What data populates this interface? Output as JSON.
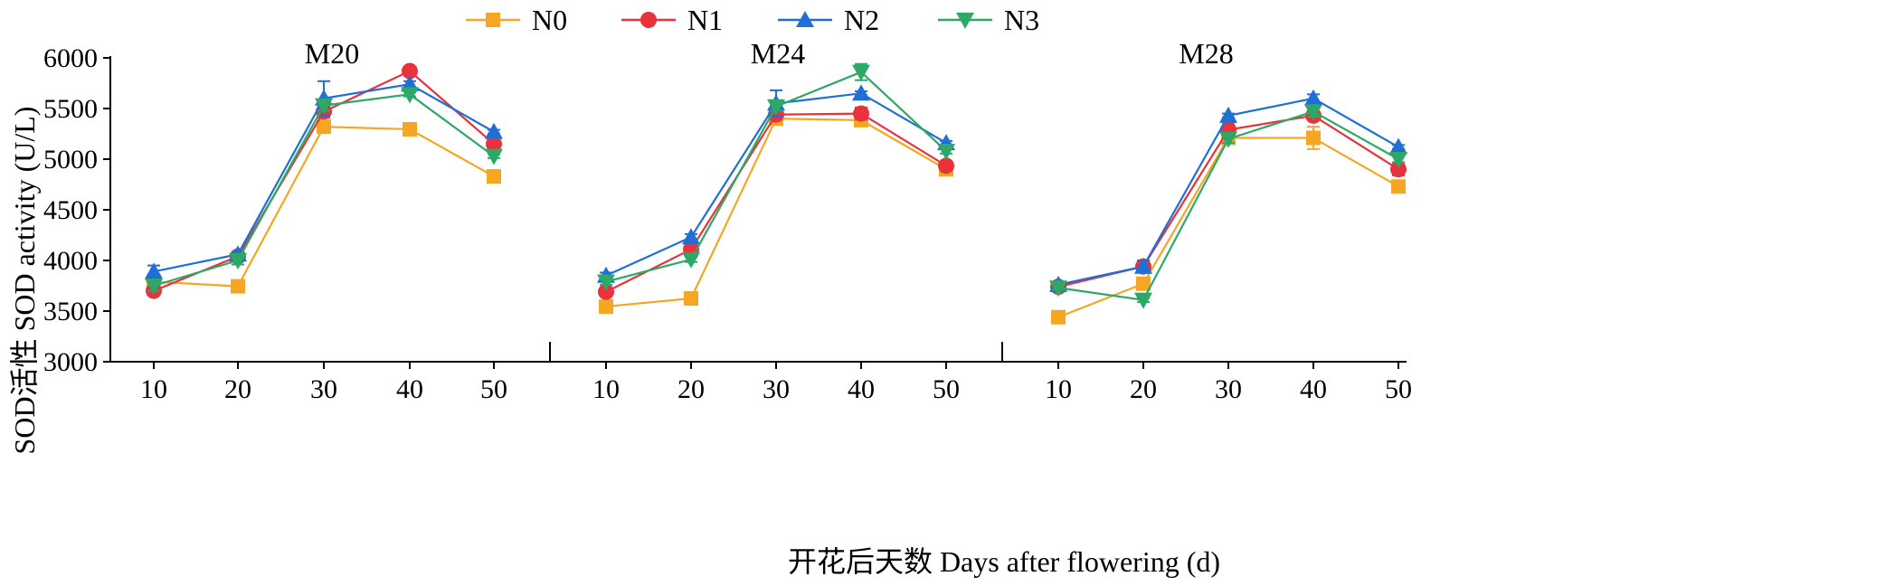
{
  "colors": {
    "N0": "#F5A623",
    "N1": "#E8323C",
    "N2": "#1F6FD6",
    "N3": "#2EA866"
  },
  "chart_data": {
    "type": "line",
    "xlabel": "开花后天数 Days after flowering (d)",
    "ylabel": "SOD活性 SOD activity (U/L)",
    "ylim": [
      3000,
      6000
    ],
    "yticks": [
      "3000",
      "3500",
      "4000",
      "4500",
      "5000",
      "5500",
      "6000"
    ],
    "x": [
      10,
      20,
      30,
      40,
      50
    ],
    "xticks": [
      "10",
      "20",
      "30",
      "40",
      "50"
    ],
    "legend": {
      "position": "top-center",
      "items": [
        {
          "key": "N0",
          "label": "N0",
          "marker": "square"
        },
        {
          "key": "N1",
          "label": "N1",
          "marker": "circle"
        },
        {
          "key": "N2",
          "label": "N2",
          "marker": "triangle-up"
        },
        {
          "key": "N3",
          "label": "N3",
          "marker": "triangle-down"
        }
      ]
    },
    "panels": [
      {
        "title": "M20",
        "series": [
          {
            "name": "N0",
            "values": [
              3790,
              3745,
              5320,
              5295,
              4830
            ],
            "errors": [
              30,
              20,
              20,
              25,
              25
            ]
          },
          {
            "name": "N1",
            "values": [
              3700,
              4040,
              5470,
              5870,
              5150
            ],
            "errors": [
              40,
              20,
              60,
              20,
              60
            ]
          },
          {
            "name": "N2",
            "values": [
              3890,
              4060,
              5600,
              5740,
              5270
            ],
            "errors": [
              60,
              20,
              170,
              30,
              20
            ]
          },
          {
            "name": "N3",
            "values": [
              3750,
              4000,
              5530,
              5640,
              5030
            ],
            "errors": [
              50,
              40,
              50,
              20,
              20
            ]
          }
        ]
      },
      {
        "title": "M24",
        "series": [
          {
            "name": "N0",
            "values": [
              3545,
              3625,
              5400,
              5385,
              4900
            ],
            "errors": [
              40,
              20,
              40,
              50,
              30
            ]
          },
          {
            "name": "N1",
            "values": [
              3690,
              4110,
              5440,
              5450,
              4935
            ],
            "errors": [
              40,
              40,
              30,
              60,
              25
            ]
          },
          {
            "name": "N2",
            "values": [
              3850,
              4230,
              5550,
              5650,
              5160
            ],
            "errors": [
              30,
              30,
              130,
              20,
              20
            ]
          },
          {
            "name": "N3",
            "values": [
              3790,
              4010,
              5520,
              5860,
              5080
            ],
            "errors": [
              30,
              25,
              40,
              80,
              25
            ]
          }
        ]
      },
      {
        "title": "M28",
        "series": [
          {
            "name": "N0",
            "values": [
              3440,
              3770,
              5210,
              5210,
              4730
            ],
            "errors": [
              20,
              30,
              60,
              110,
              40
            ]
          },
          {
            "name": "N1",
            "values": [
              3740,
              3940,
              5290,
              5430,
              4900
            ],
            "errors": [
              20,
              30,
              70,
              40,
              60
            ]
          },
          {
            "name": "N2",
            "values": [
              3760,
              3940,
              5430,
              5600,
              5120
            ],
            "errors": [
              20,
              60,
              20,
              40,
              20
            ]
          },
          {
            "name": "N3",
            "values": [
              3730,
              3610,
              5200,
              5470,
              5000
            ],
            "errors": [
              20,
              20,
              40,
              50,
              30
            ]
          }
        ]
      }
    ]
  }
}
